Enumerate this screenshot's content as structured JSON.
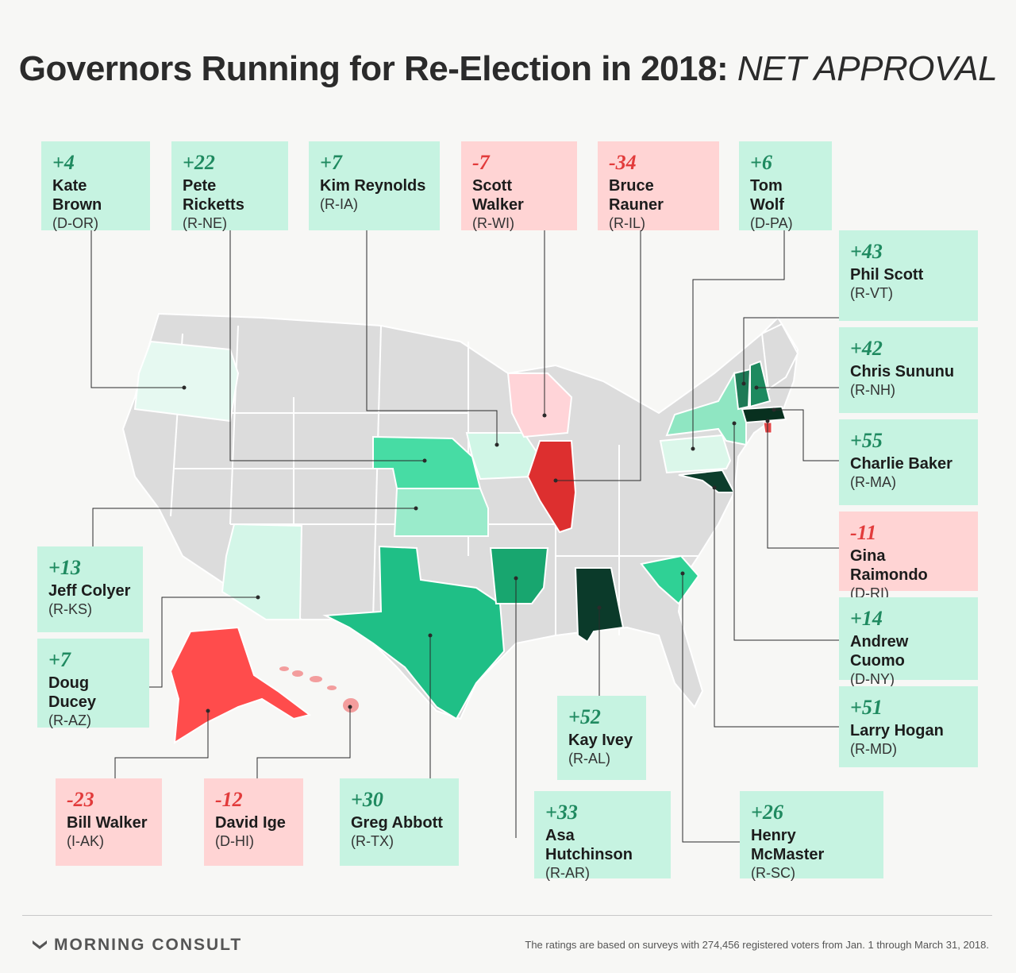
{
  "title": {
    "main": "Governors Running for Re-Election in 2018:",
    "emphasis": "NET APPROVAL"
  },
  "colors": {
    "positive_bg": "#c6f3e1",
    "positive_text": "#1f8a60",
    "negative_bg": "#ffd4d4",
    "negative_text": "#e23b3b",
    "neutral_state": "#dcdcdc"
  },
  "governors": [
    {
      "value": "+4",
      "name": "Kate Brown",
      "party": "(D-OR)",
      "sentiment": "positive"
    },
    {
      "value": "+22",
      "name": "Pete Ricketts",
      "party": "(R-NE)",
      "sentiment": "positive"
    },
    {
      "value": "+7",
      "name": "Kim Reynolds",
      "party": "(R-IA)",
      "sentiment": "positive"
    },
    {
      "value": "-7",
      "name": "Scott Walker",
      "party": "(R-WI)",
      "sentiment": "negative"
    },
    {
      "value": "-34",
      "name": "Bruce Rauner",
      "party": "(R-IL)",
      "sentiment": "negative"
    },
    {
      "value": "+6",
      "name": "Tom Wolf",
      "party": "(D-PA)",
      "sentiment": "positive"
    },
    {
      "value": "+43",
      "name": "Phil Scott",
      "party": "(R-VT)",
      "sentiment": "positive"
    },
    {
      "value": "+42",
      "name": "Chris Sununu",
      "party": "(R-NH)",
      "sentiment": "positive"
    },
    {
      "value": "+55",
      "name": "Charlie Baker",
      "party": "(R-MA)",
      "sentiment": "positive"
    },
    {
      "value": "-11",
      "name": "Gina Raimondo",
      "party": "(D-RI)",
      "sentiment": "negative"
    },
    {
      "value": "+14",
      "name": "Andrew Cuomo",
      "party": "(D-NY)",
      "sentiment": "positive"
    },
    {
      "value": "+51",
      "name": "Larry Hogan",
      "party": "(R-MD)",
      "sentiment": "positive"
    },
    {
      "value": "+13",
      "name": "Jeff Colyer",
      "party": "(R-KS)",
      "sentiment": "positive"
    },
    {
      "value": "+7",
      "name": "Doug Ducey",
      "party": "(R-AZ)",
      "sentiment": "positive"
    },
    {
      "value": "+52",
      "name": "Kay Ivey",
      "party": "(R-AL)",
      "sentiment": "positive"
    },
    {
      "value": "-23",
      "name": "Bill Walker",
      "party": "(I-AK)",
      "sentiment": "negative"
    },
    {
      "value": "-12",
      "name": "David Ige",
      "party": "(D-HI)",
      "sentiment": "negative"
    },
    {
      "value": "+30",
      "name": "Greg Abbott",
      "party": "(R-TX)",
      "sentiment": "positive"
    },
    {
      "value": "+33",
      "name": "Asa Hutchinson",
      "party": "(R-AR)",
      "sentiment": "positive"
    },
    {
      "value": "+26",
      "name": "Henry McMaster",
      "party": "(R-SC)",
      "sentiment": "positive"
    }
  ],
  "footer": {
    "brand": "MORNING CONSULT",
    "note": "The ratings are based on surveys with 274,456 registered voters from Jan. 1 through March 31, 2018."
  }
}
